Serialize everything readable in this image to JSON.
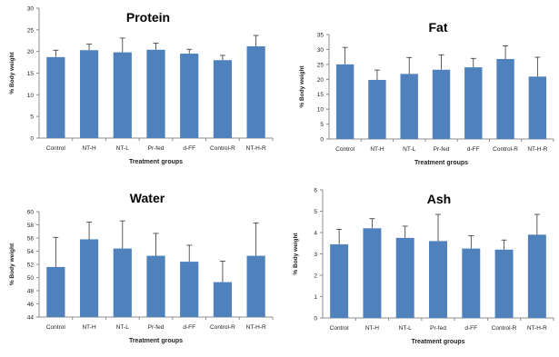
{
  "colors": {
    "bar": "#4f81bd",
    "axis": "#8c8c8c",
    "text": "#222222"
  },
  "chart_data": [
    {
      "type": "bar",
      "title": "Protein",
      "xlabel": "Treatment groups",
      "ylabel": "% Body weight",
      "categories": [
        "Control",
        "NT-H",
        "NT-L",
        "Pr-fed",
        "d-FF",
        "Control-R",
        "NT-H-R"
      ],
      "values": [
        18.7,
        20.3,
        19.8,
        20.4,
        19.5,
        18.0,
        21.2
      ],
      "errors": [
        1.6,
        1.4,
        3.3,
        1.5,
        1.0,
        1.1,
        2.5
      ],
      "ylim": [
        0,
        30
      ],
      "yticks": [
        "0",
        "5",
        "10",
        "15",
        "20",
        "25",
        "30"
      ],
      "grid": false,
      "legend": "none"
    },
    {
      "type": "bar",
      "title": "Fat",
      "xlabel": "Treatment groups",
      "ylabel": "% Body weight",
      "categories": [
        "Control",
        "NT-H",
        "NT-L",
        "Pr-fed",
        "d-FF",
        "Control-R",
        "NT-H-R"
      ],
      "values": [
        25.0,
        19.8,
        21.8,
        23.2,
        24.0,
        26.8,
        20.9
      ],
      "errors": [
        5.7,
        3.3,
        5.5,
        5.0,
        3.0,
        4.4,
        6.5
      ],
      "ylim": [
        0,
        35
      ],
      "yticks": [
        "0",
        "5",
        "10",
        "15",
        "20",
        "25",
        "30",
        "35"
      ],
      "grid": false,
      "legend": "none"
    },
    {
      "type": "bar",
      "title": "Water",
      "xlabel": "Treatment groups",
      "ylabel": "% Body weight",
      "categories": [
        "Control",
        "NT-H",
        "NT-L",
        "Pr-fed",
        "d-FF",
        "Control-R",
        "NT-H-R"
      ],
      "values": [
        51.6,
        55.8,
        54.4,
        53.3,
        52.4,
        49.3,
        53.3
      ],
      "errors": [
        4.5,
        2.6,
        4.2,
        3.4,
        2.5,
        3.2,
        5.0
      ],
      "ylim": [
        44,
        60
      ],
      "yticks": [
        "44",
        "46",
        "48",
        "50",
        "52",
        "54",
        "56",
        "58",
        "60"
      ],
      "grid": false,
      "legend": "none"
    },
    {
      "type": "bar",
      "title": "Ash",
      "xlabel": "Treatment groups",
      "ylabel": "% Body weight",
      "categories": [
        "Control",
        "NT-H",
        "NT-L",
        "Pr-fed",
        "d-FF",
        "Control-R",
        "NT-H-R"
      ],
      "values": [
        3.45,
        4.2,
        3.75,
        3.6,
        3.25,
        3.2,
        3.9
      ],
      "errors": [
        0.7,
        0.45,
        0.55,
        1.25,
        0.6,
        0.45,
        0.95
      ],
      "ylim": [
        0,
        6
      ],
      "yticks": [
        "0",
        "1",
        "2",
        "3",
        "4",
        "5",
        "6"
      ],
      "grid": false,
      "legend": "none"
    }
  ]
}
